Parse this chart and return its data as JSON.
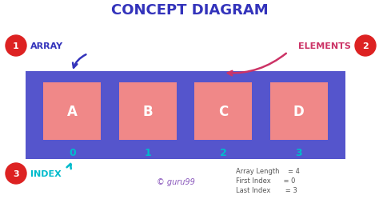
{
  "title": "CONCEPT DIAGRAM",
  "title_color": "#3333bb",
  "bg_color": "#ffffff",
  "array_bg_color": "#5555cc",
  "cell_color": "#f08888",
  "cell_labels": [
    "A",
    "B",
    "C",
    "D"
  ],
  "cell_text_color": "#ffffff",
  "index_labels": [
    "0",
    "1",
    "2",
    "3"
  ],
  "index_color": "#00bbcc",
  "label_array": "ARRAY",
  "label_array_color": "#3333bb",
  "label_elements": "ELEMENTS",
  "label_elements_color": "#cc3366",
  "label_index": "INDEX",
  "label_index_color": "#00bbcc",
  "circle_color": "#dd2222",
  "circle_text_color": "#ffffff",
  "circle_labels": [
    "1",
    "2",
    "3"
  ],
  "watermark": "© guru99",
  "watermark_color": "#8855bb",
  "info_lines": [
    "Array Length    = 4",
    "First Index      = 0",
    "Last Index       = 3"
  ],
  "info_color": "#555555",
  "arrow_array_color": "#3333bb",
  "arrow_elements_color": "#cc3366",
  "arrow_index_color": "#00bbcc",
  "figw": 4.74,
  "figh": 2.55,
  "dpi": 100
}
